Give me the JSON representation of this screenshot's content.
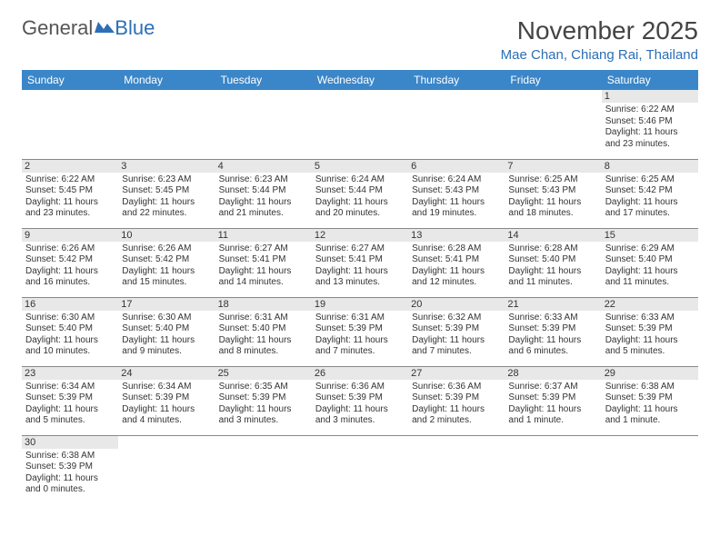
{
  "logo": {
    "general": "General",
    "blue": "Blue"
  },
  "title": "November 2025",
  "location": "Mae Chan, Chiang Rai, Thailand",
  "colors": {
    "header_bg": "#3a86c8",
    "header_text": "#ffffff",
    "accent": "#2c6fb5",
    "daynum_bg": "#e8e8e8",
    "border": "#888888",
    "text": "#333333"
  },
  "day_headers": [
    "Sunday",
    "Monday",
    "Tuesday",
    "Wednesday",
    "Thursday",
    "Friday",
    "Saturday"
  ],
  "weeks": [
    [
      {
        "n": "",
        "sr": "",
        "ss": "",
        "dl": ""
      },
      {
        "n": "",
        "sr": "",
        "ss": "",
        "dl": ""
      },
      {
        "n": "",
        "sr": "",
        "ss": "",
        "dl": ""
      },
      {
        "n": "",
        "sr": "",
        "ss": "",
        "dl": ""
      },
      {
        "n": "",
        "sr": "",
        "ss": "",
        "dl": ""
      },
      {
        "n": "",
        "sr": "",
        "ss": "",
        "dl": ""
      },
      {
        "n": "1",
        "sr": "Sunrise: 6:22 AM",
        "ss": "Sunset: 5:46 PM",
        "dl": "Daylight: 11 hours and 23 minutes."
      }
    ],
    [
      {
        "n": "2",
        "sr": "Sunrise: 6:22 AM",
        "ss": "Sunset: 5:45 PM",
        "dl": "Daylight: 11 hours and 23 minutes."
      },
      {
        "n": "3",
        "sr": "Sunrise: 6:23 AM",
        "ss": "Sunset: 5:45 PM",
        "dl": "Daylight: 11 hours and 22 minutes."
      },
      {
        "n": "4",
        "sr": "Sunrise: 6:23 AM",
        "ss": "Sunset: 5:44 PM",
        "dl": "Daylight: 11 hours and 21 minutes."
      },
      {
        "n": "5",
        "sr": "Sunrise: 6:24 AM",
        "ss": "Sunset: 5:44 PM",
        "dl": "Daylight: 11 hours and 20 minutes."
      },
      {
        "n": "6",
        "sr": "Sunrise: 6:24 AM",
        "ss": "Sunset: 5:43 PM",
        "dl": "Daylight: 11 hours and 19 minutes."
      },
      {
        "n": "7",
        "sr": "Sunrise: 6:25 AM",
        "ss": "Sunset: 5:43 PM",
        "dl": "Daylight: 11 hours and 18 minutes."
      },
      {
        "n": "8",
        "sr": "Sunrise: 6:25 AM",
        "ss": "Sunset: 5:42 PM",
        "dl": "Daylight: 11 hours and 17 minutes."
      }
    ],
    [
      {
        "n": "9",
        "sr": "Sunrise: 6:26 AM",
        "ss": "Sunset: 5:42 PM",
        "dl": "Daylight: 11 hours and 16 minutes."
      },
      {
        "n": "10",
        "sr": "Sunrise: 6:26 AM",
        "ss": "Sunset: 5:42 PM",
        "dl": "Daylight: 11 hours and 15 minutes."
      },
      {
        "n": "11",
        "sr": "Sunrise: 6:27 AM",
        "ss": "Sunset: 5:41 PM",
        "dl": "Daylight: 11 hours and 14 minutes."
      },
      {
        "n": "12",
        "sr": "Sunrise: 6:27 AM",
        "ss": "Sunset: 5:41 PM",
        "dl": "Daylight: 11 hours and 13 minutes."
      },
      {
        "n": "13",
        "sr": "Sunrise: 6:28 AM",
        "ss": "Sunset: 5:41 PM",
        "dl": "Daylight: 11 hours and 12 minutes."
      },
      {
        "n": "14",
        "sr": "Sunrise: 6:28 AM",
        "ss": "Sunset: 5:40 PM",
        "dl": "Daylight: 11 hours and 11 minutes."
      },
      {
        "n": "15",
        "sr": "Sunrise: 6:29 AM",
        "ss": "Sunset: 5:40 PM",
        "dl": "Daylight: 11 hours and 11 minutes."
      }
    ],
    [
      {
        "n": "16",
        "sr": "Sunrise: 6:30 AM",
        "ss": "Sunset: 5:40 PM",
        "dl": "Daylight: 11 hours and 10 minutes."
      },
      {
        "n": "17",
        "sr": "Sunrise: 6:30 AM",
        "ss": "Sunset: 5:40 PM",
        "dl": "Daylight: 11 hours and 9 minutes."
      },
      {
        "n": "18",
        "sr": "Sunrise: 6:31 AM",
        "ss": "Sunset: 5:40 PM",
        "dl": "Daylight: 11 hours and 8 minutes."
      },
      {
        "n": "19",
        "sr": "Sunrise: 6:31 AM",
        "ss": "Sunset: 5:39 PM",
        "dl": "Daylight: 11 hours and 7 minutes."
      },
      {
        "n": "20",
        "sr": "Sunrise: 6:32 AM",
        "ss": "Sunset: 5:39 PM",
        "dl": "Daylight: 11 hours and 7 minutes."
      },
      {
        "n": "21",
        "sr": "Sunrise: 6:33 AM",
        "ss": "Sunset: 5:39 PM",
        "dl": "Daylight: 11 hours and 6 minutes."
      },
      {
        "n": "22",
        "sr": "Sunrise: 6:33 AM",
        "ss": "Sunset: 5:39 PM",
        "dl": "Daylight: 11 hours and 5 minutes."
      }
    ],
    [
      {
        "n": "23",
        "sr": "Sunrise: 6:34 AM",
        "ss": "Sunset: 5:39 PM",
        "dl": "Daylight: 11 hours and 5 minutes."
      },
      {
        "n": "24",
        "sr": "Sunrise: 6:34 AM",
        "ss": "Sunset: 5:39 PM",
        "dl": "Daylight: 11 hours and 4 minutes."
      },
      {
        "n": "25",
        "sr": "Sunrise: 6:35 AM",
        "ss": "Sunset: 5:39 PM",
        "dl": "Daylight: 11 hours and 3 minutes."
      },
      {
        "n": "26",
        "sr": "Sunrise: 6:36 AM",
        "ss": "Sunset: 5:39 PM",
        "dl": "Daylight: 11 hours and 3 minutes."
      },
      {
        "n": "27",
        "sr": "Sunrise: 6:36 AM",
        "ss": "Sunset: 5:39 PM",
        "dl": "Daylight: 11 hours and 2 minutes."
      },
      {
        "n": "28",
        "sr": "Sunrise: 6:37 AM",
        "ss": "Sunset: 5:39 PM",
        "dl": "Daylight: 11 hours and 1 minute."
      },
      {
        "n": "29",
        "sr": "Sunrise: 6:38 AM",
        "ss": "Sunset: 5:39 PM",
        "dl": "Daylight: 11 hours and 1 minute."
      }
    ],
    [
      {
        "n": "30",
        "sr": "Sunrise: 6:38 AM",
        "ss": "Sunset: 5:39 PM",
        "dl": "Daylight: 11 hours and 0 minutes."
      },
      {
        "n": "",
        "sr": "",
        "ss": "",
        "dl": ""
      },
      {
        "n": "",
        "sr": "",
        "ss": "",
        "dl": ""
      },
      {
        "n": "",
        "sr": "",
        "ss": "",
        "dl": ""
      },
      {
        "n": "",
        "sr": "",
        "ss": "",
        "dl": ""
      },
      {
        "n": "",
        "sr": "",
        "ss": "",
        "dl": ""
      },
      {
        "n": "",
        "sr": "",
        "ss": "",
        "dl": ""
      }
    ]
  ]
}
